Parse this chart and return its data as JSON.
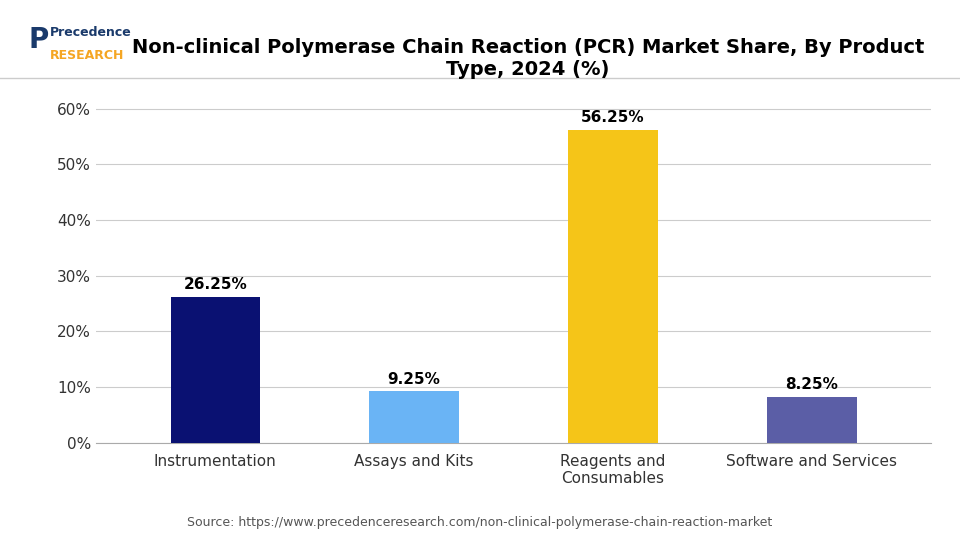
{
  "title": "Non-clinical Polymerase Chain Reaction (PCR) Market Share, By Product\nType, 2024 (%)",
  "categories": [
    "Instrumentation",
    "Assays and Kits",
    "Reagents and\nConsumables",
    "Software and Services"
  ],
  "values": [
    26.25,
    9.25,
    56.25,
    8.25
  ],
  "bar_colors": [
    "#0a1172",
    "#6ab4f5",
    "#f5c518",
    "#5b5ea6"
  ],
  "labels": [
    "26.25%",
    "9.25%",
    "56.25%",
    "8.25%"
  ],
  "yticks": [
    0,
    10,
    20,
    30,
    40,
    50,
    60
  ],
  "ytick_labels": [
    "0%",
    "10%",
    "20%",
    "30%",
    "40%",
    "50%",
    "60%"
  ],
  "ylim": [
    0,
    65
  ],
  "source_text": "Source: https://www.precedenceresearch.com/non-clinical-polymerase-chain-reaction-market",
  "background_color": "#ffffff",
  "plot_bg_color": "#ffffff",
  "title_fontsize": 14,
  "label_fontsize": 11,
  "tick_fontsize": 11,
  "source_fontsize": 9,
  "bar_width": 0.45,
  "grid_color": "#cccccc",
  "title_color": "#000000",
  "logo_text_1": "Precedence",
  "logo_text_2": "RESEARCH"
}
